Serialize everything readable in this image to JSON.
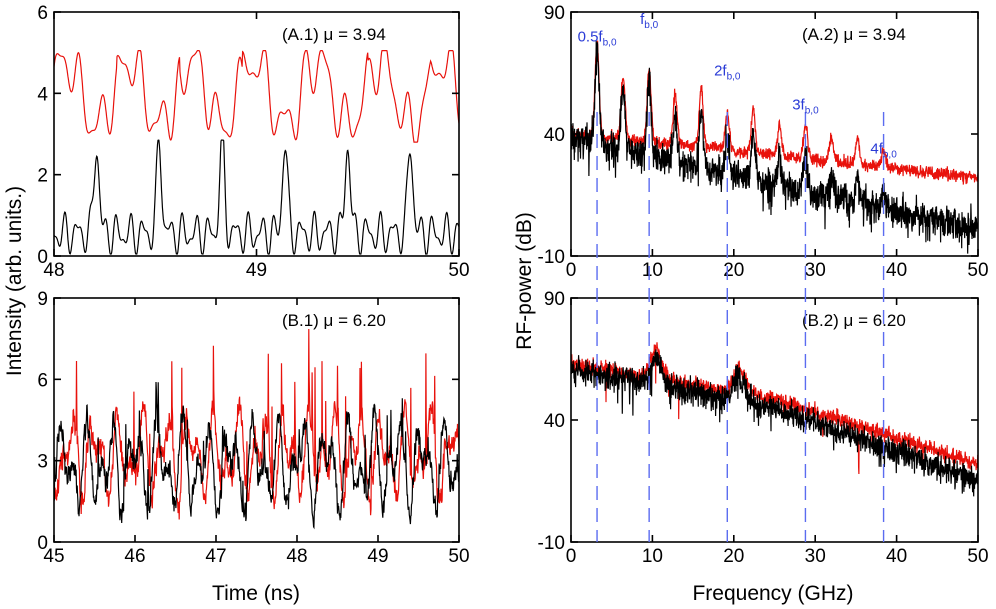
{
  "figure": {
    "ylabel_left": "Intensity (arb. units.)",
    "ylabel_right": "RF-power (dB)",
    "xlabel_left": "Time (ns)",
    "xlabel_right": "Frequency (GHz)"
  },
  "colors": {
    "red": "#e8120c",
    "black": "#000000",
    "marker": "#5b6cf0"
  },
  "chart_data": [
    {
      "id": "A1",
      "type": "line",
      "title": "(A.1) μ = 3.94",
      "xlim": [
        48,
        50
      ],
      "ylim": [
        0,
        6
      ],
      "xticks": [
        48,
        49,
        50
      ],
      "yticks": [
        0,
        2,
        4,
        6
      ],
      "series": [
        {
          "color": "red",
          "baseline": 4.0,
          "amplitude": 0.8,
          "period": 0.31,
          "jitter": 0.45
        },
        {
          "color": "black",
          "baseline": 0.55,
          "peak": 2.75,
          "period": 0.31,
          "first_peak": 48.21
        }
      ]
    },
    {
      "id": "B1",
      "type": "line",
      "title": "(B.1) μ = 6.20",
      "xlim": [
        45,
        50
      ],
      "ylim": [
        0,
        9
      ],
      "xticks": [
        45,
        46,
        47,
        48,
        49,
        50
      ],
      "yticks": [
        0,
        3,
        6,
        9
      ],
      "series": [
        {
          "color": "red",
          "mean": 3.2,
          "max": 8.8
        },
        {
          "color": "black",
          "mean": 2.8,
          "max": 5.9
        }
      ]
    },
    {
      "id": "A2",
      "type": "line",
      "title": "(A.2) μ = 3.94",
      "xlim": [
        0,
        50
      ],
      "ylim": [
        -10,
        90
      ],
      "xticks": [
        0,
        10,
        20,
        30,
        40,
        50
      ],
      "yticks": [
        -10,
        40,
        90
      ],
      "peaks_x": [
        3.2,
        6.4,
        9.6,
        12.8,
        16.0,
        19.2,
        22.4,
        25.6,
        28.8,
        32.0,
        35.2,
        38.4
      ],
      "series": [
        {
          "color": "red",
          "start": 40,
          "end": 22,
          "peak_max": 78
        },
        {
          "color": "black",
          "start": 40,
          "end": 1,
          "peak_max": 78
        }
      ]
    },
    {
      "id": "B2",
      "type": "line",
      "title": "(B.2) μ = 6.20",
      "xlim": [
        0,
        50
      ],
      "ylim": [
        -10,
        90
      ],
      "xticks": [
        0,
        10,
        20,
        30,
        40,
        50
      ],
      "yticks": [
        -10,
        40,
        90
      ],
      "series": [
        {
          "color": "red",
          "start": 63,
          "end": 22,
          "bumps": [
            {
              "x": 10.5,
              "h": 12
            },
            {
              "x": 20.7,
              "h": 10
            }
          ]
        },
        {
          "color": "black",
          "start": 61,
          "end": 15,
          "bumps": [
            {
              "x": 10.5,
              "h": 10
            },
            {
              "x": 20.7,
              "h": 10
            }
          ]
        }
      ]
    }
  ],
  "markers": {
    "x": [
      3.2,
      9.6,
      19.2,
      28.8,
      38.4
    ],
    "labels": [
      {
        "main": "0.5f",
        "sub": "b,0",
        "x": 3.2,
        "y": 78
      },
      {
        "main": "f",
        "sub": "b,0",
        "x": 9.6,
        "y": 85
      },
      {
        "main": "2f",
        "sub": "b,0",
        "x": 19.2,
        "y": 64
      },
      {
        "main": "3f",
        "sub": "b,0",
        "x": 28.8,
        "y": 50
      },
      {
        "main": "4f",
        "sub": "b,0",
        "x": 38.4,
        "y": 32
      }
    ]
  }
}
